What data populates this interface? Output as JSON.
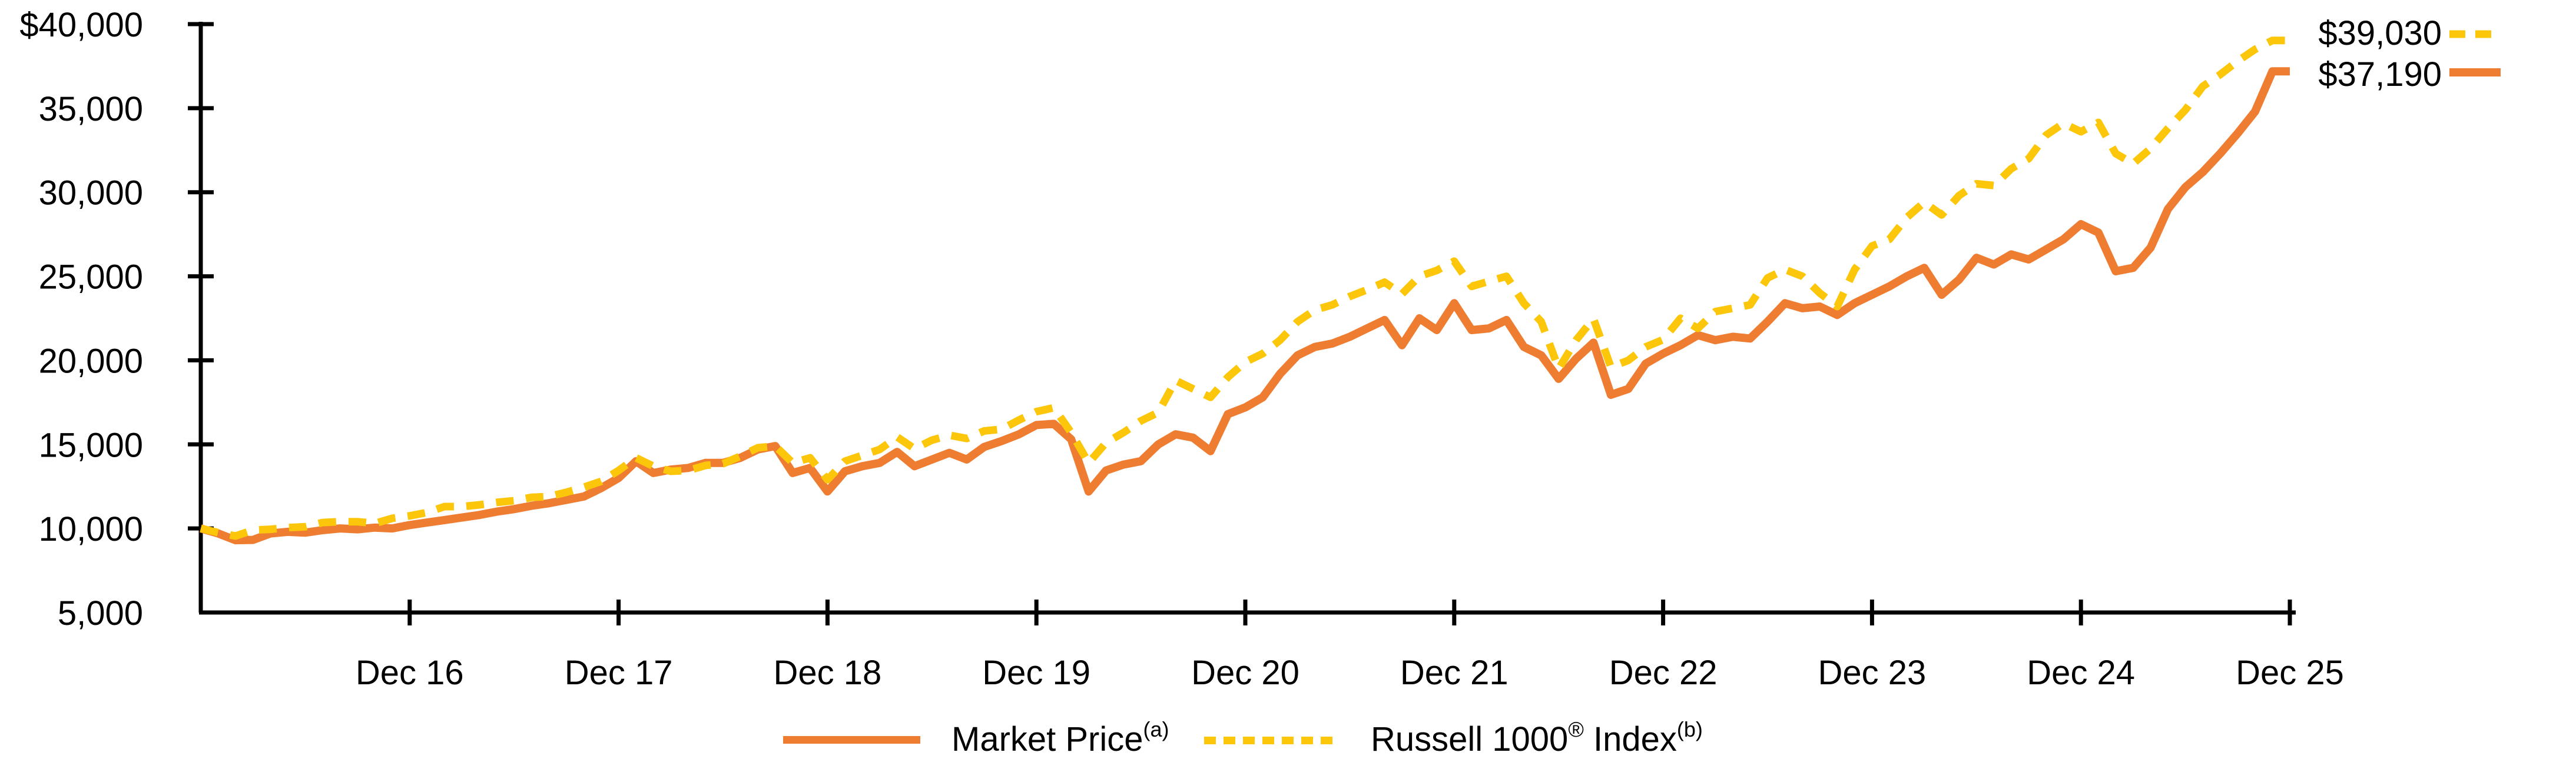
{
  "chart_data": {
    "type": "line",
    "title": "",
    "x_tick_labels": [
      "Dec 16",
      "Dec 17",
      "Dec 18",
      "Dec 19",
      "Dec 20",
      "Dec 21",
      "Dec 22",
      "Dec 23",
      "Dec 24",
      "Dec 25"
    ],
    "y_tick_values": [
      40000,
      35000,
      30000,
      25000,
      20000,
      15000,
      10000,
      5000
    ],
    "y_tick_labels": [
      "$40,000",
      "35,000",
      "30,000",
      "25,000",
      "20,000",
      "15,000",
      "10,000",
      "5,000"
    ],
    "ylim": [
      5000,
      40000
    ],
    "x_months_total": 120,
    "x_start": "Dec 15",
    "grid": "off",
    "legend_position": "bottom-center",
    "series": [
      {
        "name": "Market Price",
        "footnote_marker": "(a)",
        "color": "#EF7D31",
        "line_style": "solid",
        "end_value": 37190,
        "end_label": "$37,190",
        "values": [
          10000,
          9700,
          9300,
          9320,
          9700,
          9800,
          9750,
          9900,
          10000,
          9950,
          10050,
          10000,
          10200,
          10350,
          10500,
          10650,
          10800,
          11000,
          11150,
          11350,
          11500,
          11700,
          11900,
          12400,
          13000,
          14000,
          13300,
          13500,
          13600,
          13900,
          13900,
          14200,
          14700,
          14900,
          13300,
          13600,
          12200,
          13400,
          13700,
          13900,
          14550,
          13700,
          14100,
          14500,
          14100,
          14850,
          15200,
          15600,
          16150,
          16220,
          15300,
          12200,
          13450,
          13800,
          14000,
          15000,
          15600,
          15400,
          14600,
          16800,
          17200,
          17800,
          19200,
          20300,
          20800,
          21000,
          21400,
          21900,
          22400,
          20900,
          22500,
          21800,
          23400,
          21800,
          21900,
          22400,
          20800,
          20300,
          18900,
          20100,
          21050,
          17950,
          18300,
          19800,
          20400,
          20900,
          21500,
          21200,
          21400,
          21300,
          22300,
          23400,
          23100,
          23200,
          22700,
          23400,
          23900,
          24400,
          25000,
          25500,
          23900,
          24800,
          26100,
          25700,
          26300,
          26000,
          26600,
          27200,
          28100,
          27600,
          25300,
          25500,
          26700,
          29000,
          30300,
          31200,
          32300,
          33500,
          34800,
          37190,
          37190
        ]
      },
      {
        "name": "Russell 1000 Index",
        "registered_mark": "®",
        "footnote_marker": "(b)",
        "color": "#FCC60A",
        "line_style": "dashed",
        "end_value": 39030,
        "end_label": "$39,030",
        "values": [
          10000,
          9750,
          9550,
          9900,
          9950,
          10050,
          10100,
          10350,
          10400,
          10400,
          10300,
          10600,
          10750,
          10950,
          11300,
          11300,
          11400,
          11550,
          11650,
          11850,
          11900,
          12150,
          12450,
          12800,
          13450,
          14200,
          13700,
          13400,
          13450,
          13750,
          13850,
          14300,
          14800,
          14900,
          13900,
          14200,
          12900,
          14000,
          14350,
          14700,
          15440,
          14740,
          15250,
          15550,
          15350,
          15800,
          15900,
          16450,
          16950,
          17180,
          15700,
          13900,
          15100,
          15700,
          16400,
          16900,
          18800,
          18300,
          17800,
          19000,
          19900,
          20400,
          21200,
          22300,
          23000,
          23300,
          23800,
          24200,
          24650,
          23950,
          25000,
          25350,
          25900,
          24400,
          24700,
          25000,
          23400,
          22300,
          19500,
          21200,
          22480,
          19600,
          20000,
          20800,
          21230,
          22500,
          21900,
          22900,
          23100,
          23300,
          24900,
          25400,
          25000,
          24000,
          23200,
          25400,
          26800,
          27200,
          28500,
          29400,
          28650,
          29800,
          30500,
          30400,
          31400,
          32000,
          33400,
          34100,
          33600,
          34150,
          32300,
          31700,
          32600,
          33800,
          34900,
          36300,
          37000,
          37800,
          38500,
          39030,
          39030
        ]
      }
    ]
  },
  "end_labels": {
    "russell": "$39,030",
    "market_price": "$37,190"
  },
  "legend": {
    "market_price": {
      "label": "Market Price",
      "superscript": "(a)"
    },
    "russell": {
      "label_pre": "Russell 1000",
      "reg_mark": "®",
      "label_post": " Index",
      "superscript": "(b)"
    }
  }
}
